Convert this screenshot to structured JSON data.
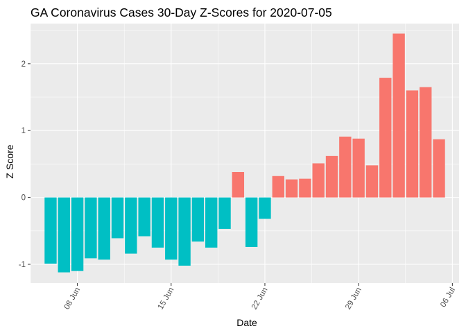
{
  "chart_data": {
    "type": "bar",
    "title": "GA Coronavirus Cases 30-Day Z-Scores for 2020-07-05",
    "xlabel": "Date",
    "ylabel": "Z Score",
    "ylim": [
      -1.28,
      2.6
    ],
    "yticks": [
      -1,
      0,
      1,
      2
    ],
    "ytick_labels": [
      "-1",
      "0",
      "1",
      "2"
    ],
    "x_day_range": [
      4.5,
      36.5
    ],
    "xticks": [
      {
        "day": 8,
        "label": "08 Jun"
      },
      {
        "day": 15,
        "label": "15 Jun"
      },
      {
        "day": 22,
        "label": "22 Jun"
      },
      {
        "day": 29,
        "label": "29 Jun"
      },
      {
        "day": 36,
        "label": "06 Jul"
      }
    ],
    "x_minor_days": [
      4.5,
      11.5,
      18.5,
      25.5,
      32.5
    ],
    "day_note": "day is days since 2020-05-31 (8 = 08 Jun, 31 = 01 Jul)",
    "grid": true,
    "legend": "none",
    "colors": {
      "positive": "#F8766D",
      "negative": "#00BFC4",
      "panel": "#EBEBEB",
      "grid": "#FFFFFF"
    },
    "points": [
      {
        "day": 6,
        "value": -0.99
      },
      {
        "day": 7,
        "value": -1.12
      },
      {
        "day": 8,
        "value": -1.1
      },
      {
        "day": 9,
        "value": -0.91
      },
      {
        "day": 10,
        "value": -0.93
      },
      {
        "day": 11,
        "value": -0.61
      },
      {
        "day": 12,
        "value": -0.84
      },
      {
        "day": 13,
        "value": -0.58
      },
      {
        "day": 14,
        "value": -0.75
      },
      {
        "day": 15,
        "value": -0.93
      },
      {
        "day": 16,
        "value": -1.02
      },
      {
        "day": 17,
        "value": -0.66
      },
      {
        "day": 18,
        "value": -0.75
      },
      {
        "day": 19,
        "value": -0.47
      },
      {
        "day": 20,
        "value": 0.38
      },
      {
        "day": 21,
        "value": -0.74
      },
      {
        "day": 22,
        "value": -0.32
      },
      {
        "day": 23,
        "value": 0.32
      },
      {
        "day": 24,
        "value": 0.27
      },
      {
        "day": 25,
        "value": 0.28
      },
      {
        "day": 26,
        "value": 0.51
      },
      {
        "day": 27,
        "value": 0.62
      },
      {
        "day": 28,
        "value": 0.91
      },
      {
        "day": 29,
        "value": 0.88
      },
      {
        "day": 30,
        "value": 0.48
      },
      {
        "day": 31,
        "value": 1.79
      },
      {
        "day": 32,
        "value": 2.45
      },
      {
        "day": 33,
        "value": 1.6
      },
      {
        "day": 34,
        "value": 1.65
      },
      {
        "day": 35,
        "value": 0.87
      }
    ]
  }
}
